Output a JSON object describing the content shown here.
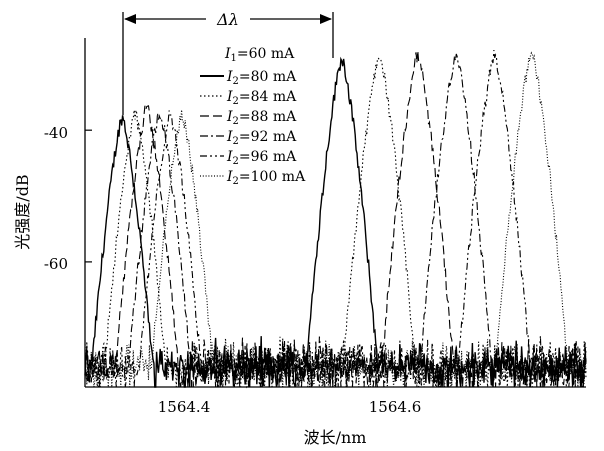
{
  "chart_data": {
    "type": "line",
    "xlabel": "波长/nm",
    "ylabel": "光强度/dB",
    "xlim": [
      1564.3,
      1564.77
    ],
    "ylim": [
      -79,
      -26
    ],
    "x_ticks": [
      1564.4,
      1564.6
    ],
    "x_tick_labels": [
      "1564.4",
      "1564.6"
    ],
    "y_ticks": [
      -40,
      -60
    ],
    "y_tick_labels": [
      "-40",
      "-60"
    ],
    "grid": false,
    "legend_position": "top-center",
    "legend_title": {
      "var": "I",
      "sub": "1",
      "text": "=60 mA"
    },
    "annotation": {
      "text": "Δλ",
      "from_x": 1564.335,
      "to_x": 1564.541
    },
    "series": [
      {
        "name": "I2=80 mA",
        "label_var": "I",
        "label_sub": "2",
        "label_text": "=80 mA",
        "style": "solid",
        "peaks": [
          {
            "x": 1564.335,
            "y": -38.0
          },
          {
            "x": 1564.541,
            "y": -29.0
          }
        ]
      },
      {
        "name": "I2=84 mA",
        "label_var": "I",
        "label_sub": "2",
        "label_text": "=84 mA",
        "style": "dotted",
        "peaks": [
          {
            "x": 1564.347,
            "y": -37.5
          },
          {
            "x": 1564.576,
            "y": -28.5
          }
        ]
      },
      {
        "name": "I2=88 mA",
        "label_var": "I",
        "label_sub": "2",
        "label_text": "=88 mA",
        "style": "dashed",
        "peaks": [
          {
            "x": 1564.358,
            "y": -36.5
          },
          {
            "x": 1564.612,
            "y": -28.5
          }
        ]
      },
      {
        "name": "I2=92 mA",
        "label_var": "I",
        "label_sub": "2",
        "label_text": "=92 mA",
        "style": "dashdot",
        "peaks": [
          {
            "x": 1564.37,
            "y": -37.0
          },
          {
            "x": 1564.648,
            "y": -28.5
          }
        ]
      },
      {
        "name": "I2=96 mA",
        "label_var": "I",
        "label_sub": "2",
        "label_text": "=96 mA",
        "style": "dashdotdot",
        "peaks": [
          {
            "x": 1564.38,
            "y": -37.5
          },
          {
            "x": 1564.684,
            "y": -28.5
          }
        ]
      },
      {
        "name": "I2=100 mA",
        "label_var": "I",
        "label_sub": "2",
        "label_text": "=100 mA",
        "style": "dotted-fine",
        "peaks": [
          {
            "x": 1564.391,
            "y": -37.5
          },
          {
            "x": 1564.719,
            "y": -28.0
          }
        ]
      }
    ]
  }
}
